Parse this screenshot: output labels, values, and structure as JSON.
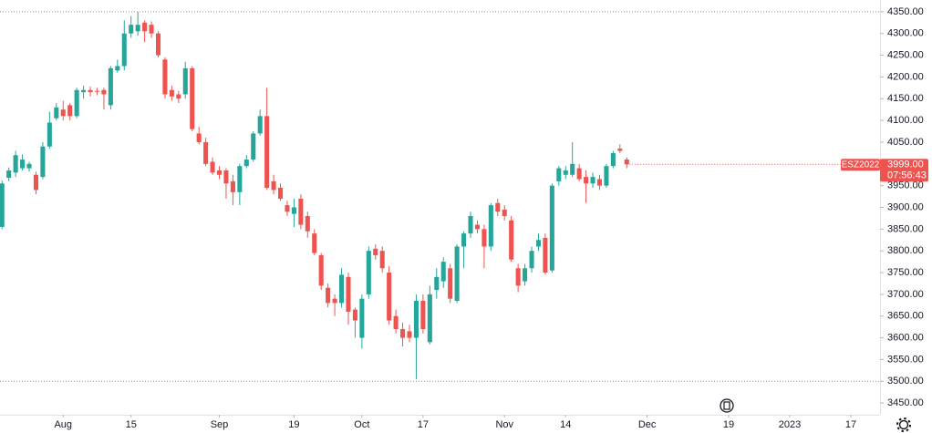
{
  "chart_data": {
    "type": "candlestick",
    "symbol": "ESZ2022",
    "last_price": 3999,
    "last_price_label": "3999.00",
    "countdown": "07:56:43",
    "up_color": "#26a69a",
    "down_color": "#ef5350",
    "x": [
      0,
      1,
      2,
      3,
      4,
      5,
      6,
      7,
      8,
      9,
      10,
      11,
      12,
      13,
      14,
      15,
      16,
      17,
      18,
      19,
      20,
      21,
      22,
      23,
      24,
      25,
      26,
      27,
      28,
      29,
      30,
      31,
      32,
      33,
      34,
      35,
      36,
      37,
      38,
      39,
      40,
      41,
      42,
      43,
      44,
      45,
      46,
      47,
      48,
      49,
      50,
      51,
      52,
      53,
      54,
      55,
      56,
      57,
      58,
      59,
      60,
      61,
      62,
      63,
      64,
      65,
      66,
      67,
      68,
      69,
      70,
      71,
      72,
      73,
      74,
      75,
      76,
      77,
      78,
      79,
      80,
      81,
      82,
      83,
      84,
      85,
      86,
      87,
      88,
      89,
      90,
      91,
      92
    ],
    "open": [
      3855,
      3968,
      3980,
      3990,
      3990,
      3975,
      3970,
      4040,
      4105,
      4125,
      4135,
      4110,
      4165,
      4170,
      4168,
      4170,
      4135,
      4215,
      4225,
      4300,
      4305,
      4325,
      4320,
      4300,
      4240,
      4170,
      4160,
      4160,
      4220,
      4070,
      4050,
      4005,
      3985,
      3985,
      3960,
      3935,
      3995,
      4010,
      4070,
      4110,
      3960,
      3945,
      3905,
      3885,
      3920,
      3880,
      3840,
      3790,
      3715,
      3690,
      3680,
      3740,
      3665,
      3600,
      3700,
      3805,
      3800,
      3750,
      3650,
      3620,
      3615,
      3600,
      3685,
      3590,
      3710,
      3730,
      3760,
      3685,
      3810,
      3840,
      3860,
      3850,
      3810,
      3910,
      3895,
      3870,
      3760,
      3730,
      3760,
      3810,
      3830,
      3755,
      3960,
      3975,
      3975,
      3990,
      3970,
      3955,
      3965,
      3950,
      3995,
      4035,
      4010
    ],
    "high": [
      3962,
      3992,
      4030,
      4022,
      4005,
      3982,
      4050,
      4120,
      4140,
      4145,
      4140,
      4175,
      4180,
      4178,
      4175,
      4175,
      4225,
      4240,
      4330,
      4340,
      4350,
      4330,
      4328,
      4305,
      4245,
      4180,
      4168,
      4235,
      4225,
      4085,
      4060,
      4015,
      3995,
      3990,
      3975,
      4000,
      4020,
      4075,
      4125,
      4175,
      3975,
      3955,
      3915,
      3920,
      3930,
      3890,
      3850,
      3795,
      3725,
      3700,
      3760,
      3750,
      3670,
      3700,
      3810,
      3815,
      3810,
      3765,
      3665,
      3635,
      3630,
      3700,
      3700,
      3720,
      3760,
      3785,
      3770,
      3815,
      3845,
      3890,
      3870,
      3860,
      3910,
      3920,
      3905,
      3880,
      3770,
      3770,
      3810,
      3840,
      3840,
      3955,
      3995,
      3995,
      4050,
      4000,
      3985,
      3980,
      3975,
      4000,
      4030,
      4045,
      4015
    ],
    "low": [
      3850,
      3960,
      3970,
      3985,
      3982,
      3930,
      3965,
      4035,
      4100,
      4100,
      4100,
      4105,
      4150,
      4155,
      4158,
      4125,
      4125,
      4210,
      4215,
      4290,
      4295,
      4280,
      4290,
      4245,
      4150,
      4145,
      4140,
      4150,
      4075,
      4045,
      3995,
      3975,
      3965,
      3920,
      3905,
      3905,
      3990,
      4005,
      4065,
      3940,
      3930,
      3915,
      3880,
      3855,
      3850,
      3830,
      3790,
      3710,
      3670,
      3650,
      3670,
      3630,
      3600,
      3575,
      3690,
      3780,
      3750,
      3630,
      3610,
      3580,
      3590,
      3505,
      3610,
      3585,
      3690,
      3715,
      3680,
      3680,
      3760,
      3830,
      3840,
      3760,
      3800,
      3880,
      3870,
      3775,
      3705,
      3720,
      3750,
      3800,
      3745,
      3750,
      3950,
      3965,
      3970,
      3960,
      3910,
      3945,
      3940,
      3945,
      3990,
      4025,
      3990
    ],
    "close": [
      3955,
      3985,
      4020,
      4010,
      4000,
      3940,
      4040,
      4095,
      4130,
      4110,
      4110,
      4170,
      4170,
      4165,
      4166,
      4160,
      4220,
      4225,
      4300,
      4320,
      4320,
      4305,
      4300,
      4250,
      4160,
      4155,
      4150,
      4220,
      4080,
      4050,
      4000,
      3980,
      3975,
      3955,
      3935,
      3995,
      4010,
      4070,
      4110,
      3945,
      3940,
      3920,
      3890,
      3900,
      3860,
      3845,
      3795,
      3720,
      3680,
      3680,
      3745,
      3660,
      3640,
      3690,
      3800,
      3790,
      3760,
      3640,
      3620,
      3600,
      3600,
      3685,
      3620,
      3700,
      3740,
      3775,
      3690,
      3810,
      3840,
      3880,
      3850,
      3810,
      3905,
      3890,
      3880,
      3780,
      3720,
      3760,
      3800,
      3825,
      3750,
      3950,
      3990,
      3985,
      4000,
      3965,
      3955,
      3970,
      3950,
      3995,
      4025,
      4030,
      3999
    ],
    "reference_lines": [
      4350,
      3500
    ],
    "xlim": [
      -0.3,
      129.3
    ],
    "xticks": [
      {
        "value": 9,
        "label": "Aug"
      },
      {
        "value": 19,
        "label": "15"
      },
      {
        "value": 32,
        "label": "Sep"
      },
      {
        "value": 43,
        "label": "19"
      },
      {
        "value": 53,
        "label": "Oct"
      },
      {
        "value": 62,
        "label": "17"
      },
      {
        "value": 74,
        "label": "Nov"
      },
      {
        "value": 83,
        "label": "14"
      },
      {
        "value": 95,
        "label": "Dec"
      },
      {
        "value": 107,
        "label": "19"
      },
      {
        "value": 116,
        "label": "2023"
      },
      {
        "value": 125,
        "label": "17"
      }
    ],
    "ylim": [
      3423,
      4377
    ],
    "yticks": [
      {
        "value": 3450,
        "label": "3450.00"
      },
      {
        "value": 3500,
        "label": "3500.00"
      },
      {
        "value": 3550,
        "label": "3550.00"
      },
      {
        "value": 3600,
        "label": "3600.00"
      },
      {
        "value": 3650,
        "label": "3650.00"
      },
      {
        "value": 3700,
        "label": "3700.00"
      },
      {
        "value": 3750,
        "label": "3750.00"
      },
      {
        "value": 3800,
        "label": "3800.00"
      },
      {
        "value": 3850,
        "label": "3850.00"
      },
      {
        "value": 3900,
        "label": "3900.00"
      },
      {
        "value": 3950,
        "label": "3950.00"
      },
      {
        "value": 4000,
        "label": "4000.00"
      },
      {
        "value": 4050,
        "label": "4050.00"
      },
      {
        "value": 4100,
        "label": "4100.00"
      },
      {
        "value": 4150,
        "label": "4150.00"
      },
      {
        "value": 4200,
        "label": "4200.00"
      },
      {
        "value": 4250,
        "label": "4250.00"
      },
      {
        "value": 4300,
        "label": "4300.00"
      },
      {
        "value": 4350,
        "label": "4350.00"
      }
    ]
  }
}
